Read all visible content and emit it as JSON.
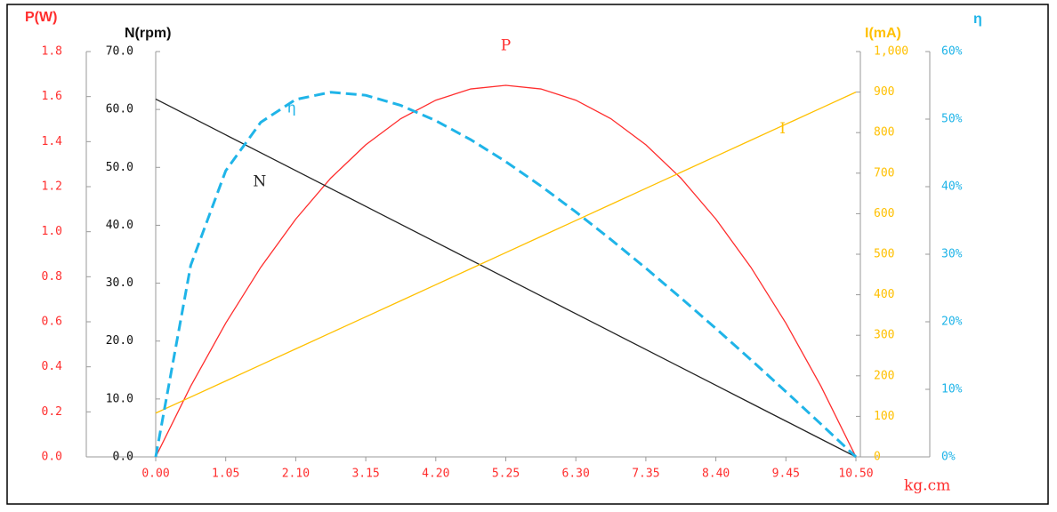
{
  "chart_data": {
    "type": "line",
    "x_label": "kg.cm",
    "x": [
      0,
      0.525,
      1.05,
      1.575,
      2.1,
      2.625,
      3.15,
      3.675,
      4.2,
      4.725,
      5.25,
      5.775,
      6.3,
      6.825,
      7.35,
      7.875,
      8.4,
      8.925,
      9.45,
      9.975,
      10.5
    ],
    "xlim": [
      0,
      10.5
    ],
    "xticks": [
      {
        "value": 0,
        "label": "0.00"
      },
      1.05,
      {
        "value": 2.1,
        "label": "2.10"
      },
      3.15,
      {
        "value": 4.2,
        "label": "4.20"
      },
      5.25,
      {
        "value": 6.3,
        "label": "6.30"
      },
      7.35,
      {
        "value": 8.4,
        "label": "8.40"
      },
      9.45,
      {
        "value": 10.5,
        "label": "10.50"
      }
    ],
    "y_label": "P(W)",
    "ylim": [
      0,
      1.8
    ],
    "yticks": [
      {
        "value": 0,
        "label": "0.0"
      },
      0.2,
      0.4,
      0.6,
      0.8,
      {
        "value": 1,
        "label": "1.0"
      },
      1.2,
      1.4,
      1.6,
      1.8
    ],
    "y2_label": "N(rpm)",
    "y2lim": [
      0,
      70
    ],
    "y2ticks": [
      {
        "value": 0,
        "label": "0.0"
      },
      {
        "value": 10,
        "label": "10.0"
      },
      {
        "value": 20,
        "label": "20.0"
      },
      {
        "value": 30,
        "label": "30.0"
      },
      {
        "value": 40,
        "label": "40.0"
      },
      {
        "value": 50,
        "label": "50.0"
      },
      {
        "value": 60,
        "label": "60.0"
      },
      {
        "value": 70,
        "label": "70.0"
      }
    ],
    "y3_label": "I(mA)",
    "y3lim": [
      0,
      1000
    ],
    "y3ticks": [
      0,
      100,
      200,
      300,
      400,
      500,
      600,
      700,
      800,
      900,
      {
        "value": 1000,
        "label": "1,000"
      }
    ],
    "y4_label": "η",
    "y4lim": [
      0,
      60
    ],
    "y4ticks": [
      {
        "value": 0,
        "label": "0%"
      },
      {
        "value": 10,
        "label": "10%"
      },
      {
        "value": 20,
        "label": "20%"
      },
      {
        "value": 30,
        "label": "30%"
      },
      {
        "value": 40,
        "label": "40%"
      },
      {
        "value": 50,
        "label": "50%"
      },
      {
        "value": 60,
        "label": "60%"
      }
    ],
    "series": [
      {
        "name": "P",
        "color": "#ff2d2d",
        "axis": "y",
        "dashed": false,
        "values": [
          0,
          0.314,
          0.594,
          0.842,
          1.056,
          1.238,
          1.386,
          1.502,
          1.584,
          1.634,
          1.65,
          1.634,
          1.584,
          1.502,
          1.386,
          1.238,
          1.056,
          0.842,
          0.594,
          0.314,
          0
        ]
      },
      {
        "name": "N",
        "color": "#222222",
        "axis": "y2",
        "dashed": false,
        "values": [
          61.8,
          58.71,
          55.62,
          52.53,
          49.44,
          46.35,
          43.26,
          40.17,
          37.08,
          33.99,
          30.9,
          27.81,
          24.72,
          21.63,
          18.54,
          15.45,
          12.36,
          9.27,
          6.18,
          3.09,
          0
        ]
      },
      {
        "name": "I",
        "color": "#ffc000",
        "axis": "y3",
        "dashed": false,
        "values": [
          108,
          147.6,
          187.2,
          226.8,
          266.4,
          306,
          345.6,
          385.2,
          424.8,
          464.4,
          504,
          543.6,
          583.2,
          622.8,
          662.4,
          702,
          741.6,
          781.2,
          820.8,
          860.4,
          900
        ]
      },
      {
        "name": "η",
        "color": "#1fb4e8",
        "axis": "y4",
        "dashed": true,
        "values": [
          0,
          28.35,
          42.36,
          49.53,
          52.91,
          53.98,
          53.53,
          52.03,
          49.77,
          46.95,
          43.7,
          40.11,
          36.26,
          32.18,
          27.93,
          23.53,
          19.01,
          14.38,
          9.66,
          4.86,
          0
        ]
      }
    ]
  }
}
